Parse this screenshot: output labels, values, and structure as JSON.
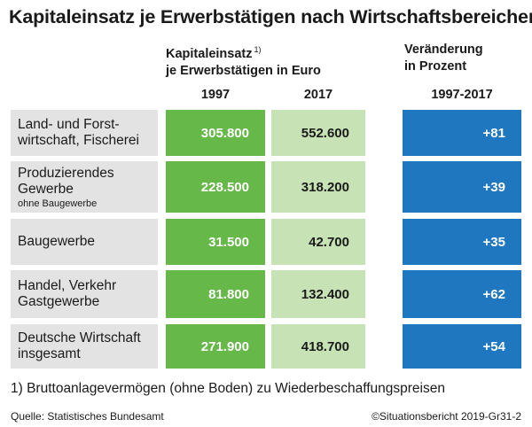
{
  "title": "Kapitaleinsatz je Erwerbstätigen nach Wirtschaftsbereichen",
  "header_capital_line1": "Kapitaleinsatz",
  "header_capital_note": "1)",
  "header_capital_line2": "je Erwerbstätigen in Euro",
  "header_change_line1": "Veränderung",
  "header_change_line2": "in Prozent",
  "year_1997": "1997",
  "year_2017": "2017",
  "year_range": "1997-2017",
  "footnote": "1) Bruttoanlagevermögen (ohne Boden) zu Wiederbeschaffungspreisen",
  "source": "Quelle: Statistisches Bundesamt",
  "credit": "©Situationsbericht 2019-Gr31-2",
  "colors": {
    "col_1997": "#66b848",
    "col_2017": "#c7e3b6",
    "col_change": "#1f78bf",
    "label_bg": "#e3e3e3"
  },
  "rows": [
    {
      "lines": [
        "Land- und Forst-",
        "wirtschaft, Fischerei"
      ],
      "sub": "",
      "v1997": "305.800",
      "v2017": "552.600",
      "change": "+81"
    },
    {
      "lines": [
        "Produzierendes",
        "Gewerbe"
      ],
      "sub": "ohne Baugewerbe",
      "v1997": "228.500",
      "v2017": "318.200",
      "change": "+39"
    },
    {
      "lines": [
        "Baugewerbe"
      ],
      "sub": "",
      "v1997": "31.500",
      "v2017": "42.700",
      "change": "+35"
    },
    {
      "lines": [
        "Handel, Verkehr",
        "Gastgewerbe"
      ],
      "sub": "",
      "v1997": "81.800",
      "v2017": "132.400",
      "change": "+62"
    },
    {
      "lines": [
        "Deutsche Wirtschaft",
        "insgesamt"
      ],
      "sub": "",
      "v1997": "271.900",
      "v2017": "418.700",
      "change": "+54"
    }
  ],
  "chart_data": {
    "type": "table",
    "title": "Kapitaleinsatz je Erwerbstätigen nach Wirtschaftsbereichen",
    "columns": [
      "1997",
      "2017",
      "1997-2017"
    ],
    "categories": [
      "Land- und Forstwirtschaft, Fischerei",
      "Produzierendes Gewerbe ohne Baugewerbe",
      "Baugewerbe",
      "Handel, Verkehr Gastgewerbe",
      "Deutsche Wirtschaft insgesamt"
    ],
    "series": [
      {
        "name": "1997",
        "values": [
          305800,
          228500,
          31500,
          81800,
          271900
        ]
      },
      {
        "name": "2017",
        "values": [
          552600,
          318200,
          42700,
          132400,
          418700
        ]
      },
      {
        "name": "1997-2017",
        "values": [
          81,
          39,
          35,
          62,
          54
        ]
      }
    ]
  }
}
